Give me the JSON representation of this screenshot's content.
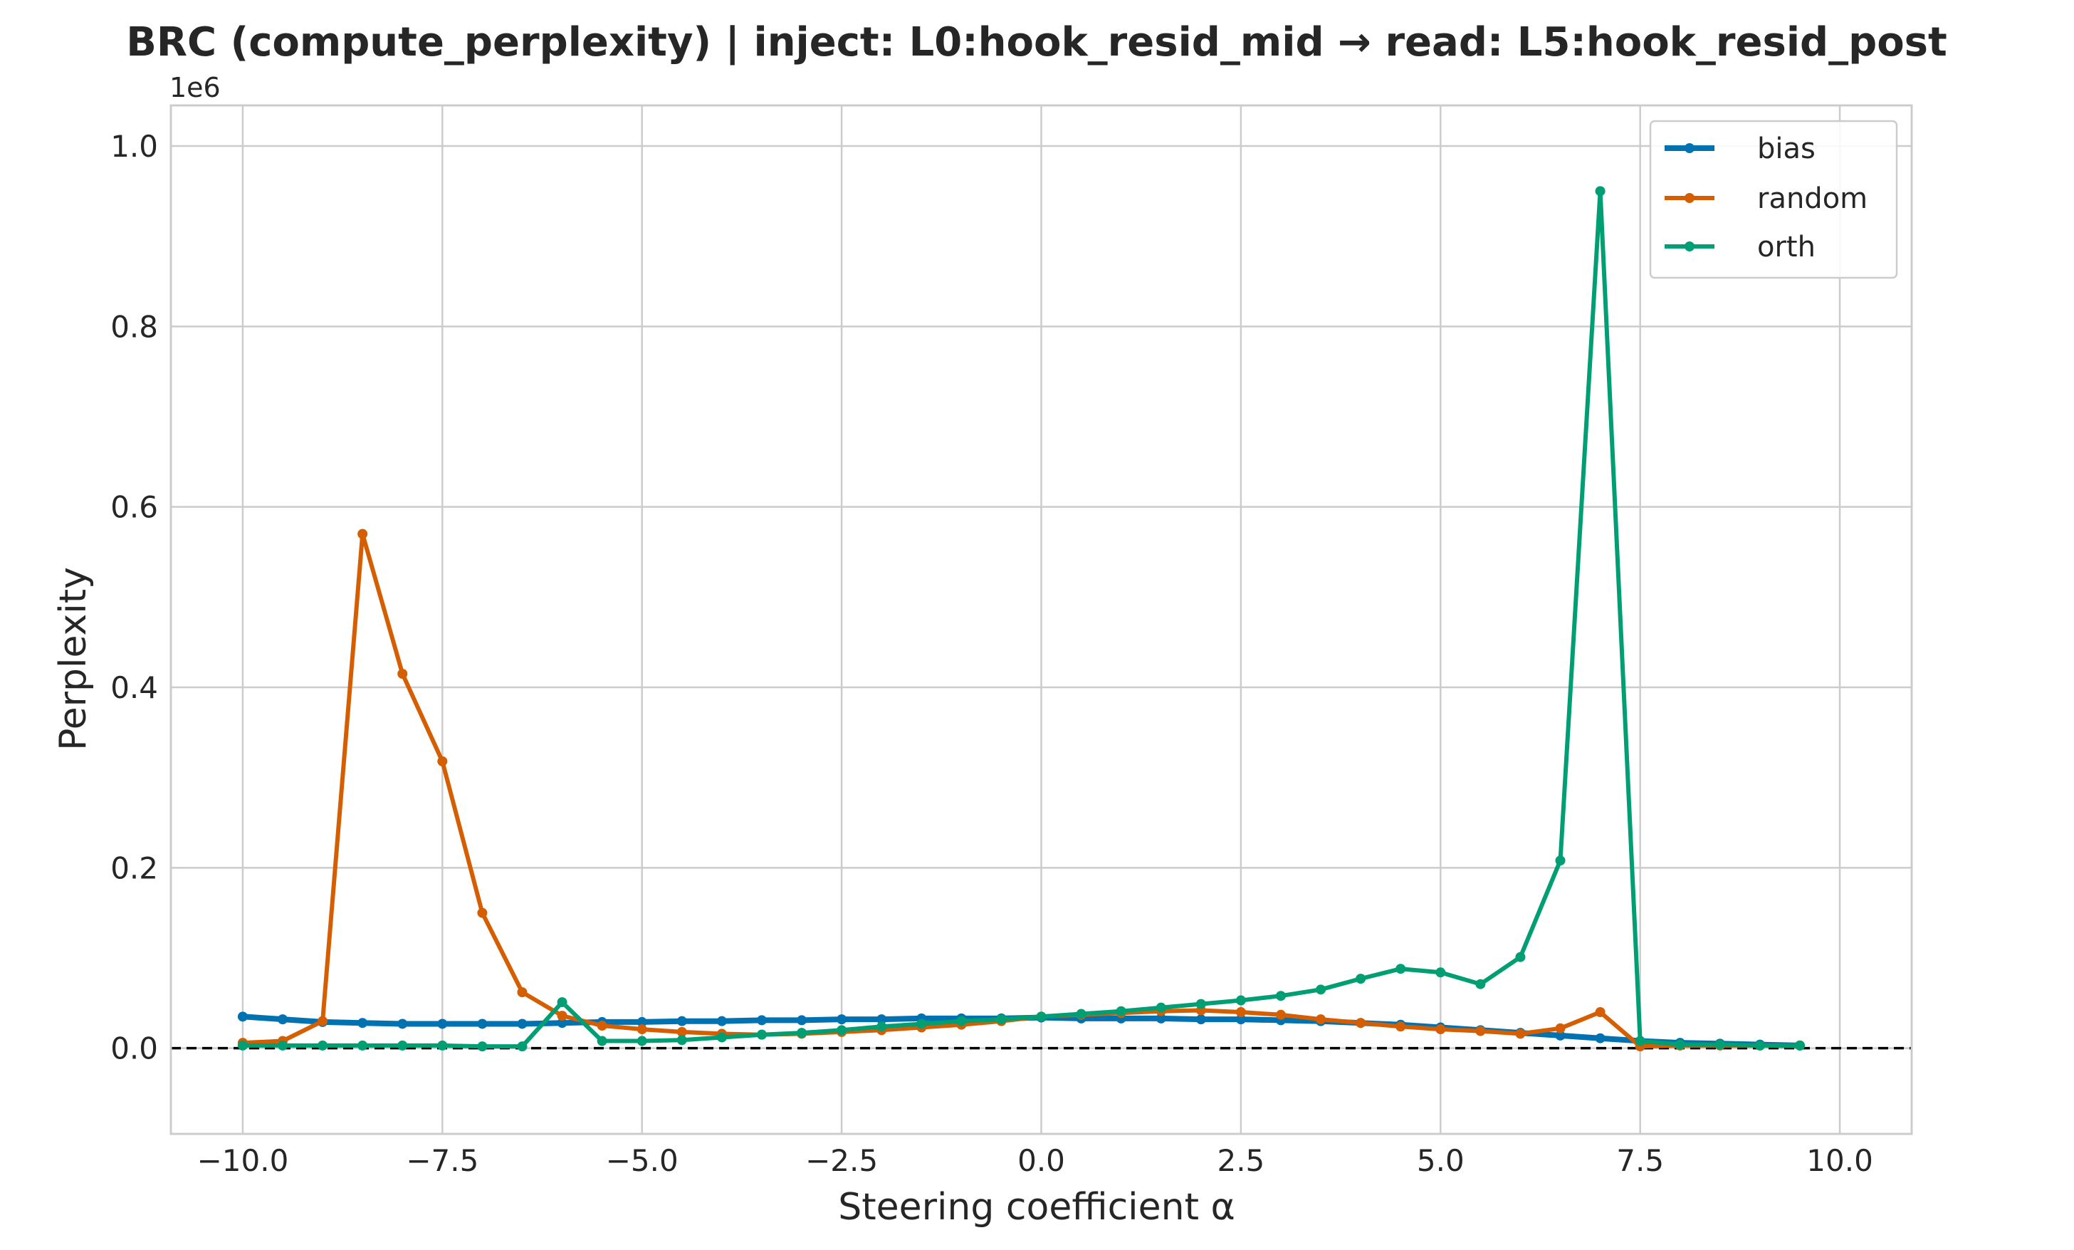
{
  "chart_data": {
    "type": "line",
    "title": "BRC (compute_perplexity) | inject: L0:hook_resid_mid → read: L5:hook_resid_post",
    "xlabel": "Steering coefficient α",
    "ylabel": "Perplexity",
    "y_offset_label": "1e6",
    "xlim": [
      -10.9,
      10.9
    ],
    "ylim": [
      -0.095,
      1.045
    ],
    "x_ticks": [
      -10.0,
      -7.5,
      -5.0,
      -2.5,
      0.0,
      2.5,
      5.0,
      7.5,
      10.0
    ],
    "x_tick_labels": [
      "−10.0",
      "−7.5",
      "−5.0",
      "−2.5",
      "0.0",
      "2.5",
      "5.0",
      "7.5",
      "10.0"
    ],
    "y_ticks": [
      0.0,
      0.2,
      0.4,
      0.6,
      0.8,
      1.0
    ],
    "y_tick_labels": [
      "0.0",
      "0.2",
      "0.4",
      "0.6",
      "0.8",
      "1.0"
    ],
    "grid": true,
    "legend_position": "top-right",
    "reference_line": {
      "y": 0,
      "style": "dashed",
      "color": "#000000"
    },
    "x": [
      -10,
      -9.5,
      -9,
      -8.5,
      -8,
      -7.5,
      -7,
      -6.5,
      -6,
      -5.5,
      -5,
      -4.5,
      -4,
      -3.5,
      -3,
      -2.5,
      -2,
      -1.5,
      -1,
      -0.5,
      0,
      0.5,
      1,
      1.5,
      2,
      2.5,
      3,
      3.5,
      4,
      4.5,
      5,
      5.5,
      6,
      6.5,
      7,
      7.5,
      8,
      8.5,
      9,
      9.5
    ],
    "series": [
      {
        "name": "bias",
        "color": "#0072b2",
        "width": 8,
        "values": [
          0.035,
          0.032,
          0.029,
          0.028,
          0.027,
          0.027,
          0.027,
          0.027,
          0.028,
          0.029,
          0.029,
          0.03,
          0.03,
          0.031,
          0.031,
          0.032,
          0.032,
          0.033,
          0.033,
          0.033,
          0.034,
          0.033,
          0.033,
          0.033,
          0.032,
          0.032,
          0.031,
          0.03,
          0.028,
          0.026,
          0.023,
          0.02,
          0.017,
          0.014,
          0.011,
          0.008,
          0.006,
          0.005,
          0.004,
          0.003
        ]
      },
      {
        "name": "random",
        "color": "#d55e00",
        "width": 6,
        "values": [
          0.006,
          0.008,
          0.03,
          0.57,
          0.415,
          0.318,
          0.15,
          0.062,
          0.036,
          0.025,
          0.021,
          0.018,
          0.016,
          0.015,
          0.016,
          0.018,
          0.02,
          0.023,
          0.026,
          0.03,
          0.035,
          0.037,
          0.039,
          0.041,
          0.042,
          0.04,
          0.037,
          0.032,
          0.028,
          0.024,
          0.021,
          0.019,
          0.016,
          0.022,
          0.04,
          0.002,
          0.003,
          0.003,
          0.003,
          0.003
        ]
      },
      {
        "name": "orth",
        "color": "#009e73",
        "width": 6,
        "values": [
          0.003,
          0.003,
          0.003,
          0.003,
          0.003,
          0.003,
          0.002,
          0.002,
          0.051,
          0.008,
          0.008,
          0.009,
          0.012,
          0.015,
          0.017,
          0.02,
          0.024,
          0.027,
          0.03,
          0.032,
          0.035,
          0.038,
          0.041,
          0.045,
          0.049,
          0.053,
          0.058,
          0.065,
          0.077,
          0.088,
          0.084,
          0.071,
          0.101,
          0.208,
          0.95,
          0.008,
          0.004,
          0.004,
          0.003,
          0.003
        ]
      }
    ]
  }
}
